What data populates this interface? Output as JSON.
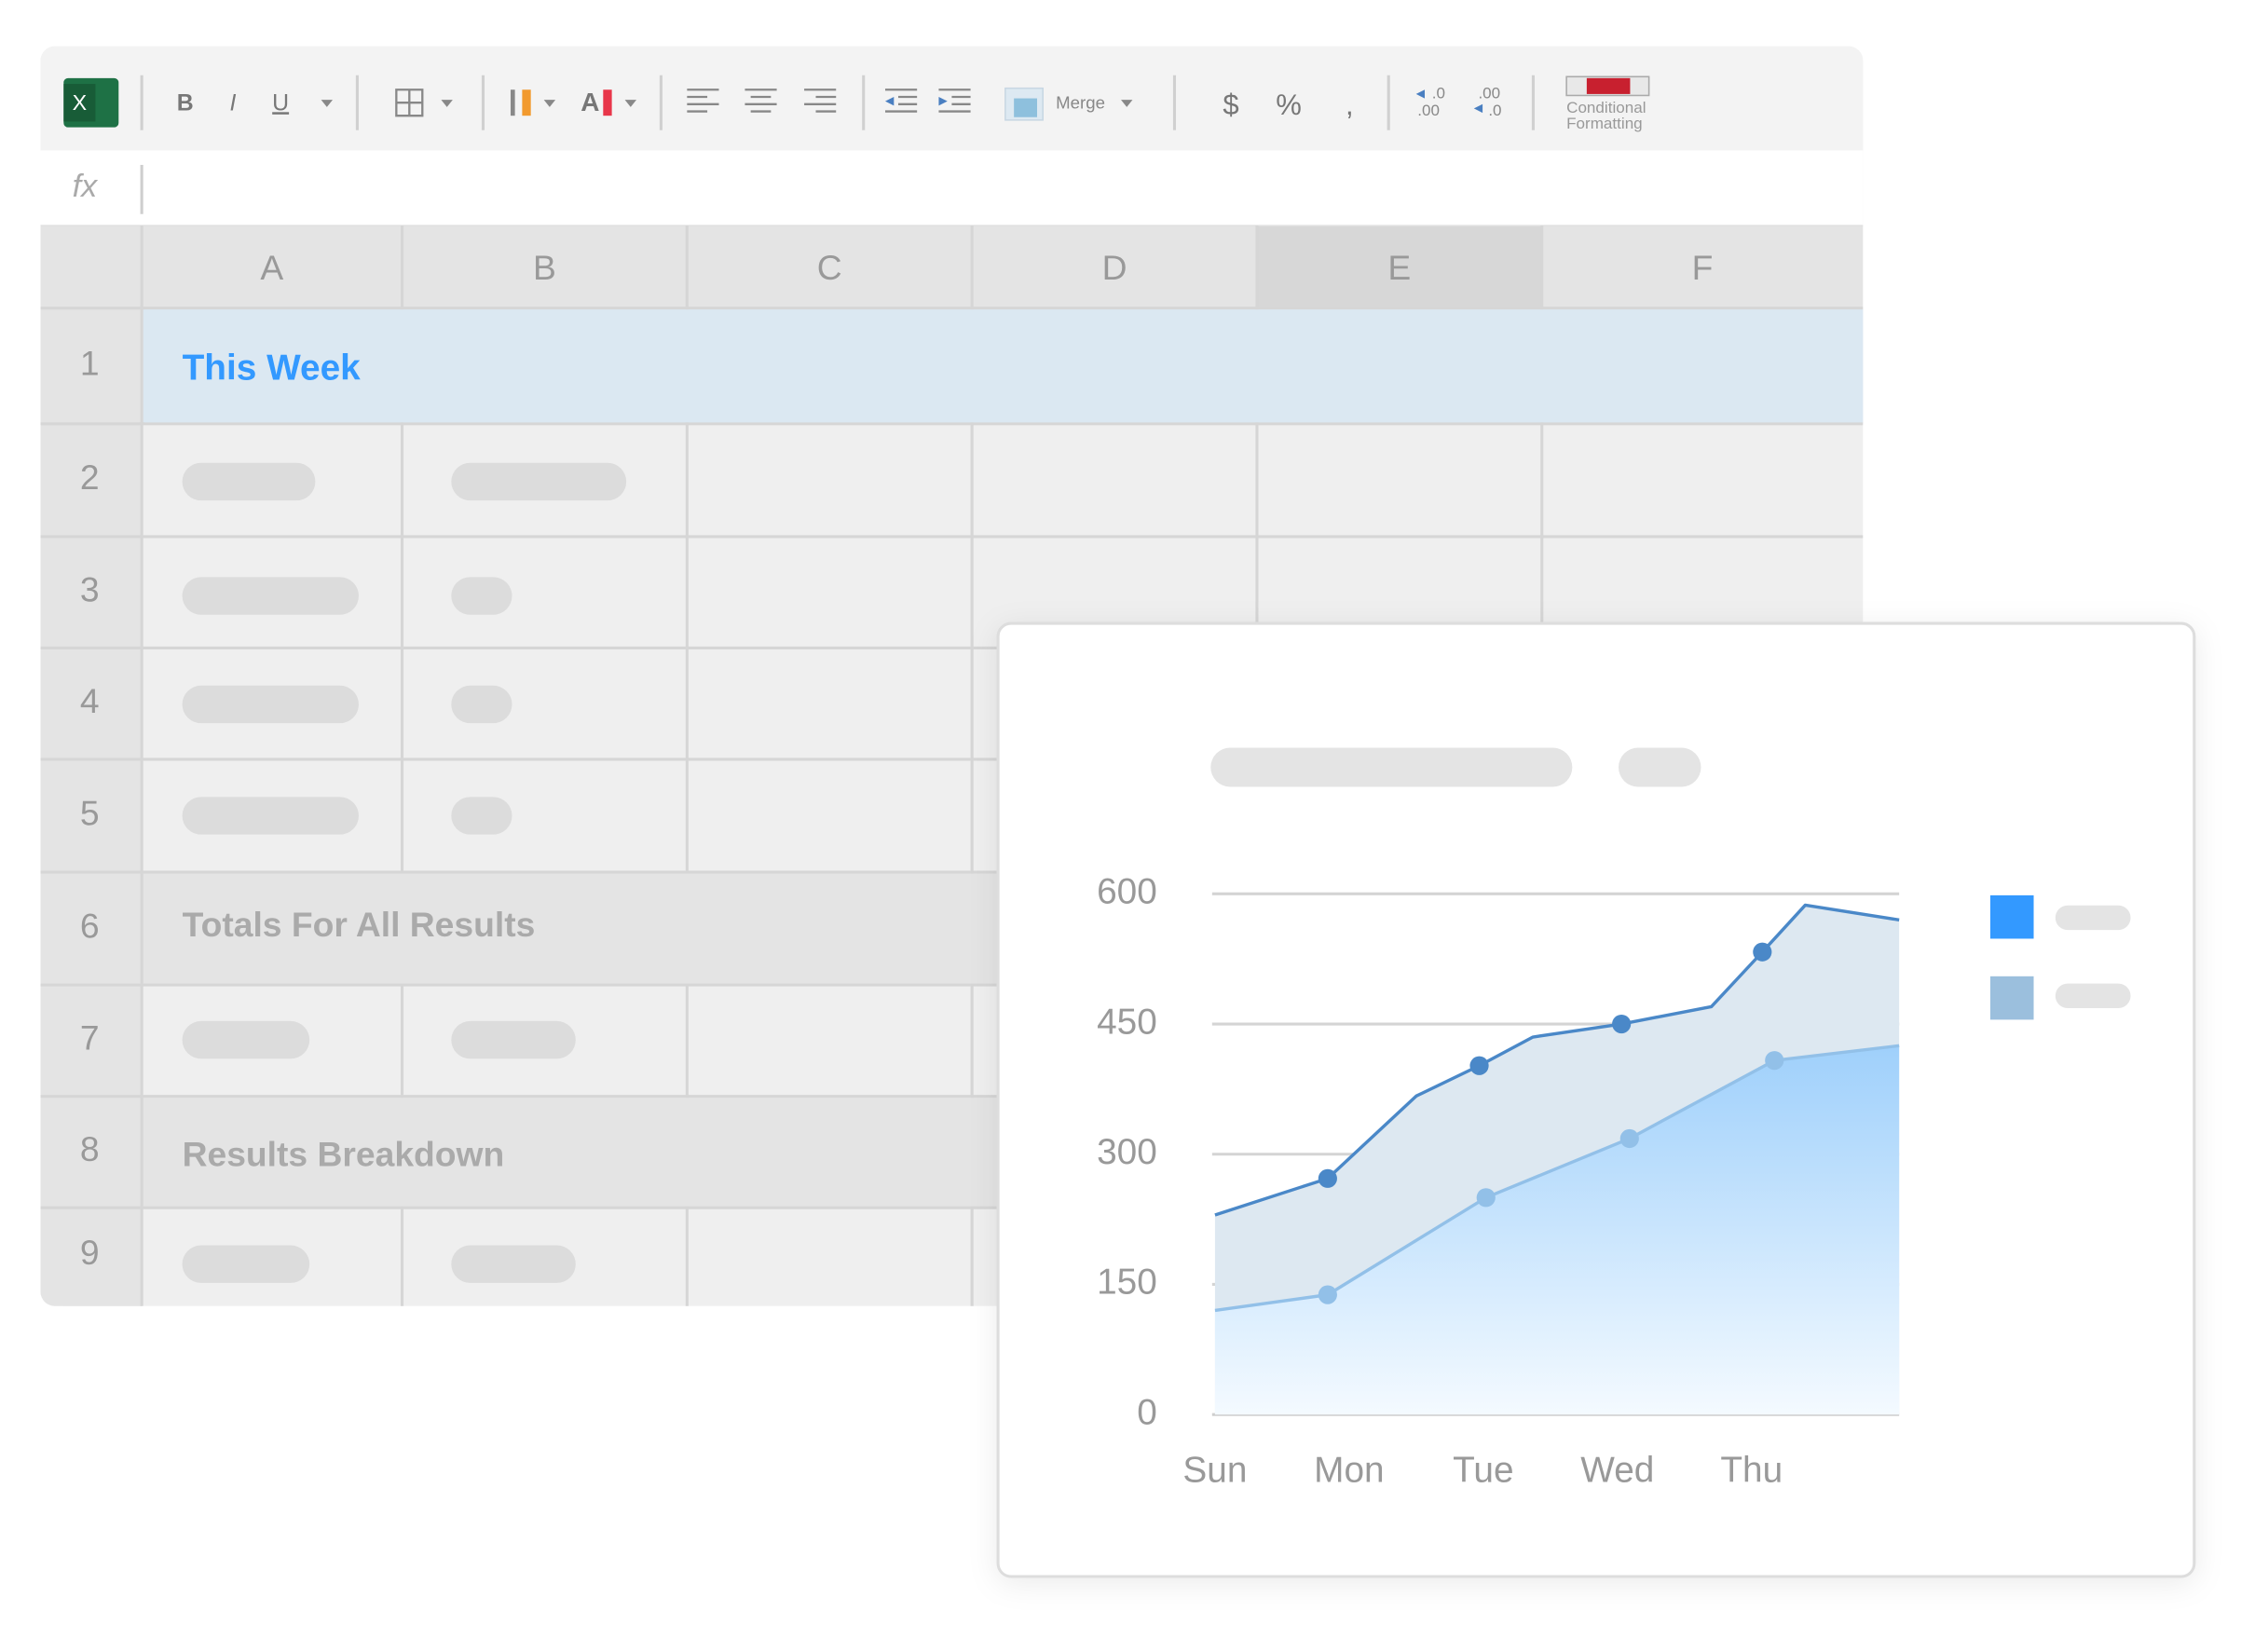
{
  "toolbar": {
    "buttons": [
      "B",
      "I",
      "U",
      "$",
      "%",
      ","
    ],
    "merge": "Merge",
    "increase_decimal": [
      ".0",
      ".00"
    ],
    "decrease_decimal": [
      ".00",
      ".0"
    ],
    "conditional_formatting": [
      "Conditional",
      "Formatting"
    ]
  },
  "formula_bar": {
    "label": "fx"
  },
  "sheet": {
    "columns": [
      "A",
      "B",
      "C",
      "D",
      "E",
      "F"
    ],
    "rows": [
      1,
      2,
      3,
      4,
      5,
      6,
      7,
      8,
      9
    ],
    "this_week": "This Week",
    "totals": "Totals For All Results",
    "breakdown": "Results Breakdown"
  },
  "chart_data": {
    "type": "area",
    "xlim": [
      0,
      5.1
    ],
    "xticks": [
      {
        "value": 0,
        "label": "Sun"
      },
      {
        "value": 1,
        "label": "Mon"
      },
      {
        "value": 2,
        "label": "Tue"
      },
      {
        "value": 3,
        "label": "Wed"
      },
      {
        "value": 4,
        "label": "Thu"
      }
    ],
    "ylim": [
      0,
      600
    ],
    "yticks": [
      0,
      150,
      300,
      450,
      600
    ],
    "grid": true,
    "series": [
      {
        "color": "#4a88c8",
        "fill": "#dde8f1",
        "x": [
          0,
          0.84,
          1.5,
          1.97,
          2.37,
          3.03,
          3.7,
          4.08,
          4.4,
          5.1
        ],
        "values": [
          230,
          272,
          367,
          402,
          435,
          450,
          470,
          533,
          587,
          570
        ],
        "marker_x": [
          0.84,
          1.97,
          3.03,
          4.08
        ],
        "marker_values": [
          272,
          402,
          450,
          533
        ]
      },
      {
        "color": "#92c0e8",
        "fill": "#9fd0fb",
        "x": [
          0,
          0.84,
          2.02,
          3.09,
          4.17,
          5.1
        ],
        "values": [
          120,
          138,
          250,
          318,
          408,
          425
        ],
        "marker_x": [
          0.84,
          2.02,
          3.09,
          4.17
        ],
        "marker_values": [
          138,
          250,
          318,
          408
        ]
      }
    ]
  }
}
